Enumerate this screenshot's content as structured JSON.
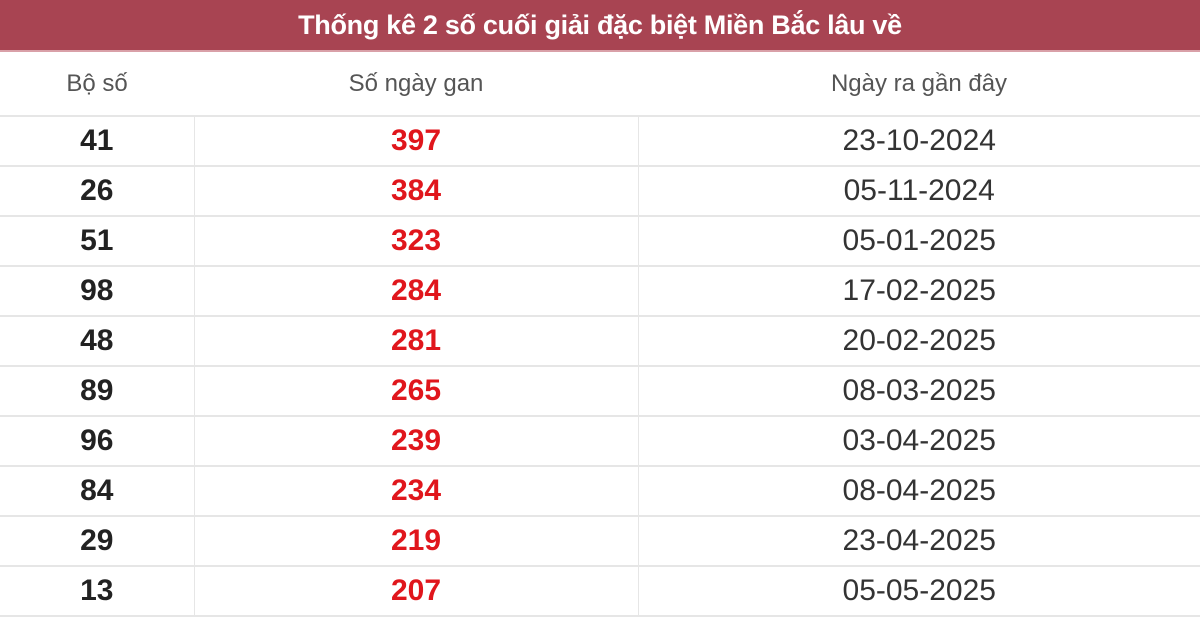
{
  "title": "Thống kê 2 số cuối giải đặc biệt Miền Bắc lâu về",
  "columns": [
    "Bộ số",
    "Số ngày gan",
    "Ngày ra gần đây"
  ],
  "rows": [
    [
      "41",
      "397",
      "23-10-2024"
    ],
    [
      "26",
      "384",
      "05-11-2024"
    ],
    [
      "51",
      "323",
      "05-01-2025"
    ],
    [
      "98",
      "284",
      "17-02-2025"
    ],
    [
      "48",
      "281",
      "20-02-2025"
    ],
    [
      "89",
      "265",
      "08-03-2025"
    ],
    [
      "96",
      "239",
      "03-04-2025"
    ],
    [
      "84",
      "234",
      "08-04-2025"
    ],
    [
      "29",
      "219",
      "23-04-2025"
    ],
    [
      "13",
      "207",
      "05-05-2025"
    ]
  ],
  "colors": {
    "header_bg": "#a84452",
    "gan_text": "#e0161c"
  }
}
